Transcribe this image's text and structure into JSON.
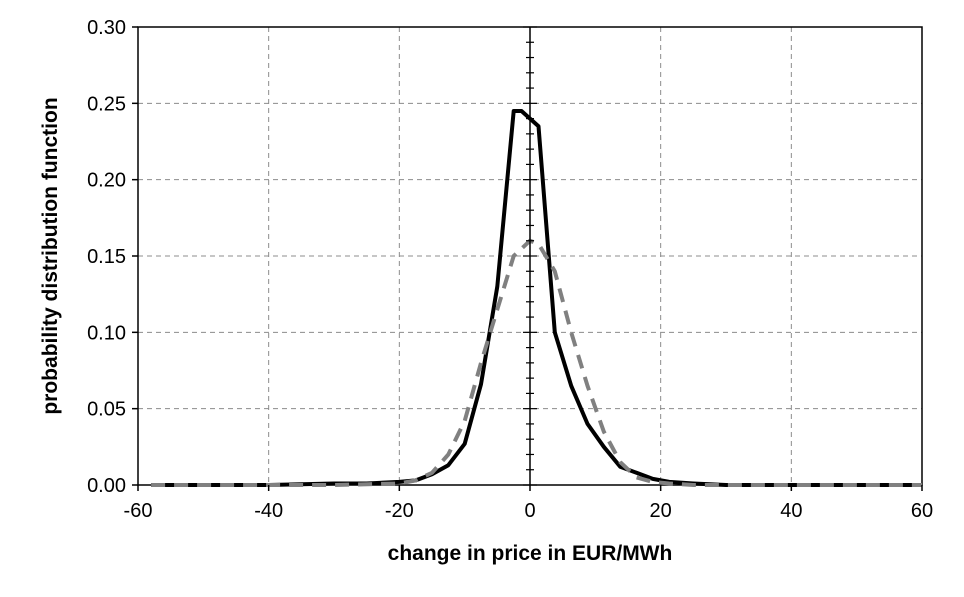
{
  "chart_data": {
    "type": "line",
    "title": "",
    "xlabel": "change in price in EUR/MWh",
    "ylabel": "probability distribution function",
    "xlim": [
      -60,
      60
    ],
    "ylim": [
      0,
      0.3
    ],
    "x_ticks": [
      -60,
      -40,
      -20,
      0,
      20,
      40,
      60
    ],
    "y_ticks": [
      0.0,
      0.05,
      0.1,
      0.15,
      0.2,
      0.25,
      0.3
    ],
    "x_tick_labels": [
      "-60",
      "-40",
      "-20",
      "0",
      "20",
      "40",
      "60"
    ],
    "y_tick_labels": [
      "0.00",
      "0.05",
      "0.10",
      "0.15",
      "0.20",
      "0.25",
      "0.30"
    ],
    "grid": true,
    "legend": "none",
    "series": [
      {
        "color": "#000000",
        "style": "solid",
        "x": [
          -58,
          -50,
          -40,
          -30,
          -25,
          -20,
          -17.5,
          -15,
          -12.5,
          -10,
          -7.5,
          -5,
          -2.5,
          -1.3,
          1.3,
          3.8,
          6.3,
          8.8,
          11.3,
          13.8,
          16.3,
          18.8,
          21.3,
          25,
          30,
          40,
          50,
          60
        ],
        "y": [
          0.0,
          0.0,
          0.0,
          0.001,
          0.001,
          0.002,
          0.003,
          0.007,
          0.013,
          0.027,
          0.066,
          0.13,
          0.245,
          0.245,
          0.235,
          0.1,
          0.065,
          0.04,
          0.025,
          0.012,
          0.008,
          0.004,
          0.002,
          0.001,
          0.0,
          0.0,
          0.0,
          0.0
        ]
      },
      {
        "color": "#808080",
        "style": "dashed",
        "x": [
          -58,
          -50,
          -40,
          -30,
          -20,
          -17.5,
          -15,
          -12.5,
          -10,
          -7.5,
          -5,
          -2.5,
          0,
          1.3,
          3.8,
          6.3,
          8.8,
          11.3,
          13.8,
          16.3,
          18.8,
          21.3,
          25,
          30,
          40,
          50,
          60
        ],
        "y": [
          0.0,
          0.0,
          0.0,
          0.0,
          0.001,
          0.003,
          0.008,
          0.02,
          0.042,
          0.08,
          0.115,
          0.15,
          0.16,
          0.158,
          0.14,
          0.1,
          0.065,
          0.035,
          0.015,
          0.005,
          0.002,
          0.001,
          0.0,
          0.0,
          0.0,
          0.0,
          0.0
        ]
      }
    ]
  }
}
